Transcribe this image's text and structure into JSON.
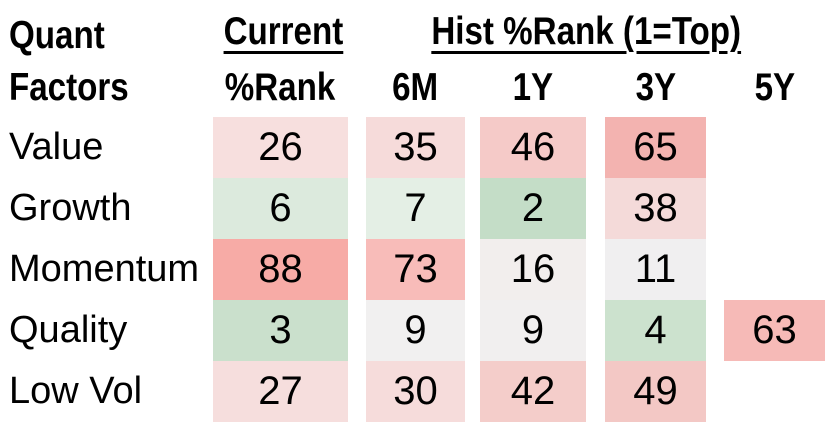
{
  "title": {
    "line1": "Quant",
    "line2": "Factors"
  },
  "headers": {
    "current_group": "Current",
    "hist_group": "Hist %Rank (1=Top)",
    "sub": [
      "%Rank",
      "6M",
      "1Y",
      "3Y",
      "5Y"
    ]
  },
  "table": {
    "rows": [
      {
        "label": "Value",
        "cells": [
          {
            "v": "26",
            "bg": "#f7dfde"
          },
          {
            "v": "35",
            "bg": "#f6dbda"
          },
          {
            "v": "46",
            "bg": "#f5cac8"
          },
          {
            "v": "65",
            "bg": "#f3b3b0"
          },
          {
            "v": "",
            "bg": "transparent"
          }
        ]
      },
      {
        "label": "Growth",
        "cells": [
          {
            "v": "6",
            "bg": "#dceadd"
          },
          {
            "v": "7",
            "bg": "#e4efe5"
          },
          {
            "v": "2",
            "bg": "#c4ddc7"
          },
          {
            "v": "38",
            "bg": "#f4dad9"
          },
          {
            "v": "",
            "bg": "transparent"
          }
        ]
      },
      {
        "label": "Momentum",
        "cells": [
          {
            "v": "88",
            "bg": "#f7aba6"
          },
          {
            "v": "73",
            "bg": "#f8bcb9"
          },
          {
            "v": "16",
            "bg": "#f2eeed"
          },
          {
            "v": "11",
            "bg": "#f0eff0"
          },
          {
            "v": "",
            "bg": "transparent"
          }
        ]
      },
      {
        "label": "Quality",
        "cells": [
          {
            "v": "3",
            "bg": "#cae0cc"
          },
          {
            "v": "9",
            "bg": "#f1f0f0"
          },
          {
            "v": "9",
            "bg": "#f1efef"
          },
          {
            "v": "4",
            "bg": "#cce2ce"
          },
          {
            "v": "63",
            "bg": "#f6bab7"
          }
        ]
      },
      {
        "label": "Low Vol",
        "cells": [
          {
            "v": "27",
            "bg": "#f6dedd"
          },
          {
            "v": "30",
            "bg": "#f6dcdb"
          },
          {
            "v": "42",
            "bg": "#f4cdca"
          },
          {
            "v": "49",
            "bg": "#f3c8c5"
          },
          {
            "v": "",
            "bg": "transparent"
          }
        ]
      }
    ]
  },
  "chart_data": {
    "type": "heatmap",
    "title": "Hist %Rank (1=Top)",
    "row_header": "Quant Factors",
    "columns": [
      "Current %Rank",
      "6M",
      "1Y",
      "3Y",
      "5Y"
    ],
    "rows": [
      "Value",
      "Growth",
      "Momentum",
      "Quality",
      "Low Vol"
    ],
    "values": [
      [
        26,
        35,
        46,
        65,
        null
      ],
      [
        6,
        7,
        2,
        38,
        null
      ],
      [
        88,
        73,
        16,
        11,
        null
      ],
      [
        3,
        9,
        9,
        4,
        63
      ],
      [
        27,
        30,
        42,
        49,
        null
      ]
    ],
    "color_scale": {
      "low": "#c4ddc7",
      "mid": "#f1f0f0",
      "high": "#f7aba6",
      "meaning": "green = rank near 1 (top), red = high %rank"
    }
  }
}
